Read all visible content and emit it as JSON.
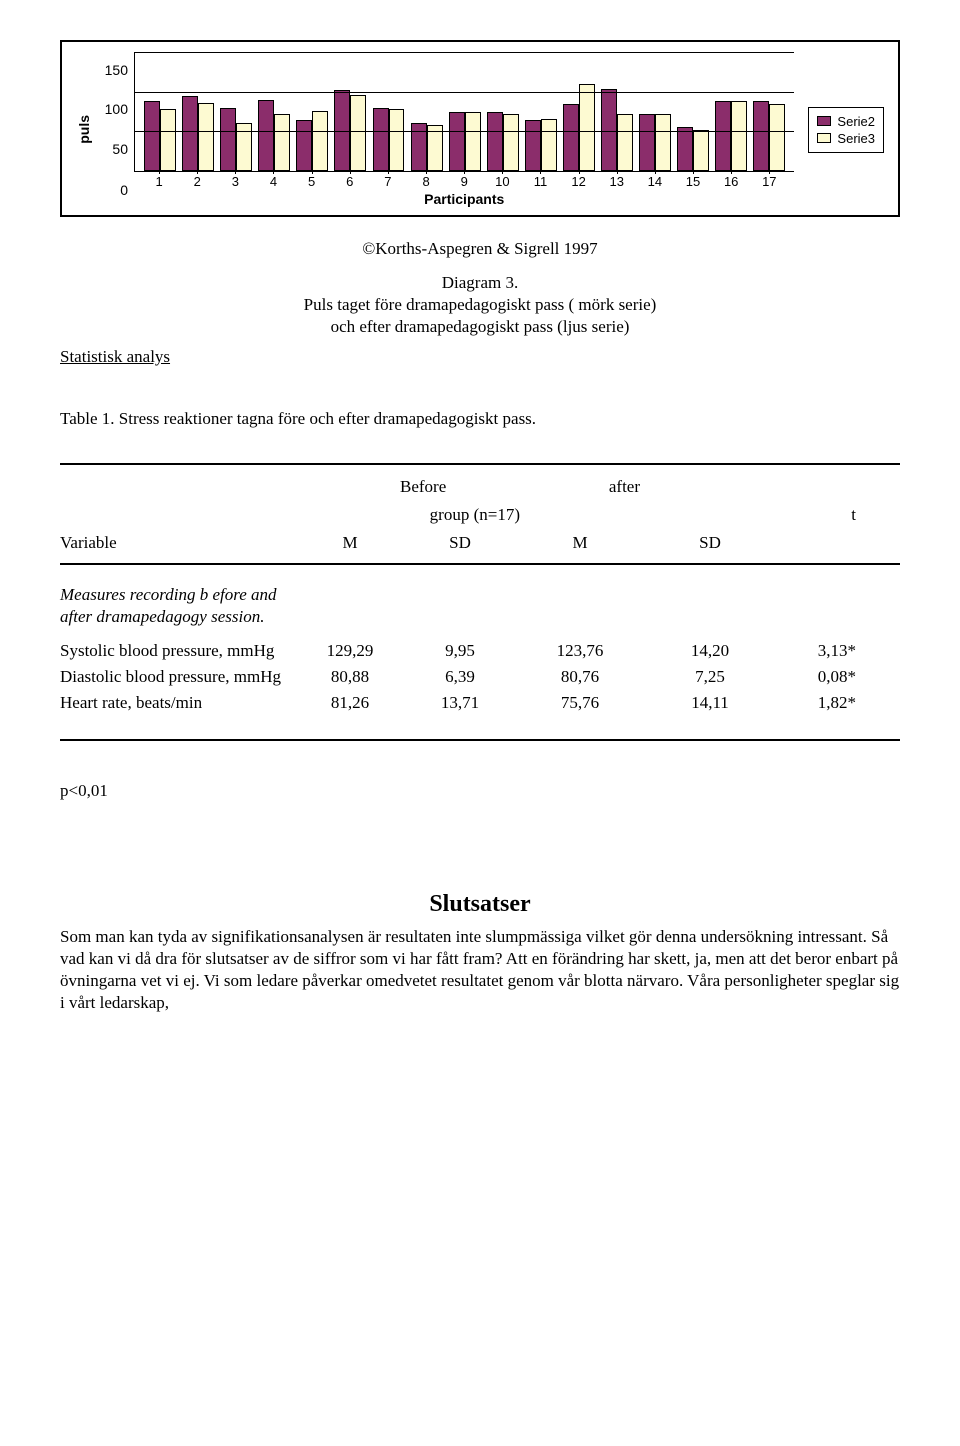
{
  "chart": {
    "type": "bar",
    "ylabel": "puls",
    "xlabel": "Participants",
    "ylim": [
      0,
      150
    ],
    "yticks": [
      0,
      50,
      100,
      150
    ],
    "categories": [
      "1",
      "2",
      "3",
      "4",
      "5",
      "6",
      "7",
      "8",
      "9",
      "10",
      "11",
      "12",
      "13",
      "14",
      "15",
      "16",
      "17"
    ],
    "series": [
      {
        "name": "Serie2",
        "color": "#8b2d6b",
        "values": [
          88,
          94,
          80,
          90,
          64,
          102,
          80,
          60,
          74,
          74,
          64,
          84,
          104,
          72,
          56,
          88,
          88
        ]
      },
      {
        "name": "Serie3",
        "color": "#fdfad2",
        "values": [
          78,
          86,
          60,
          72,
          76,
          96,
          78,
          58,
          74,
          72,
          66,
          110,
          72,
          72,
          52,
          88,
          84
        ]
      }
    ],
    "background_color": "#ffffff",
    "gridline_color": "#000000",
    "border_color": "#000000",
    "font_family": "Arial",
    "ytick_fontsize": 14,
    "xtick_fontsize": 13,
    "axis_label_fontsize": 14,
    "bar_border_color": "#000000"
  },
  "copyright": "©Korths-Aspegren & Sigrell 1997",
  "figure_title": "Diagram 3.",
  "figure_caption_l1": "Puls taget före dramapedagogiskt pass ( mörk serie)",
  "figure_caption_l2": "och efter dramapedagogiskt pass (ljus serie)",
  "section_analysis": "Statistisk analys",
  "table_caption": "Table 1. Stress reaktioner tagna före och efter dramapedagogiskt pass.",
  "table": {
    "header": {
      "before": "Before",
      "after": "after",
      "group": "group (n=17)",
      "t": "t",
      "variable": "Variable",
      "m1": "M",
      "sd1": "SD",
      "m2": "M",
      "sd2": "SD"
    },
    "measures_line1": "Measures recording b efore and",
    "measures_line2": " after dramapedagogy session.",
    "rows": [
      {
        "variable": "Systolic blood pressure, mmHg",
        "m1": "129,29",
        "sd1": "9,95",
        "m2": "123,76",
        "sd2": "14,20",
        "t": "3,13*"
      },
      {
        "variable": "Diastolic blood pressure, mmHg",
        "m1": "80,88",
        "sd1": "6,39",
        "m2": "80,76",
        "sd2": "7,25",
        "t": "0,08*"
      },
      {
        "variable": "Heart rate, beats/min",
        "m1": "81,26",
        "sd1": "13,71",
        "m2": "75,76",
        "sd2": "14,11",
        "t": "1,82*"
      }
    ]
  },
  "p_value": "p<0,01",
  "conclusions_title": "Slutsatser",
  "conclusions_body": "Som man kan tyda av signifikationsanalysen är resultaten inte slumpmässiga vilket gör denna undersökning intressant. Så vad kan vi då dra för slutsatser av de siffror som vi har fått fram? Att en förändring har skett, ja, men att det beror enbart på övningarna vet vi ej. Vi som ledare påverkar omedvetet resultatet genom vår blotta närvaro. Våra personligheter speglar sig i vårt ledarskap,"
}
